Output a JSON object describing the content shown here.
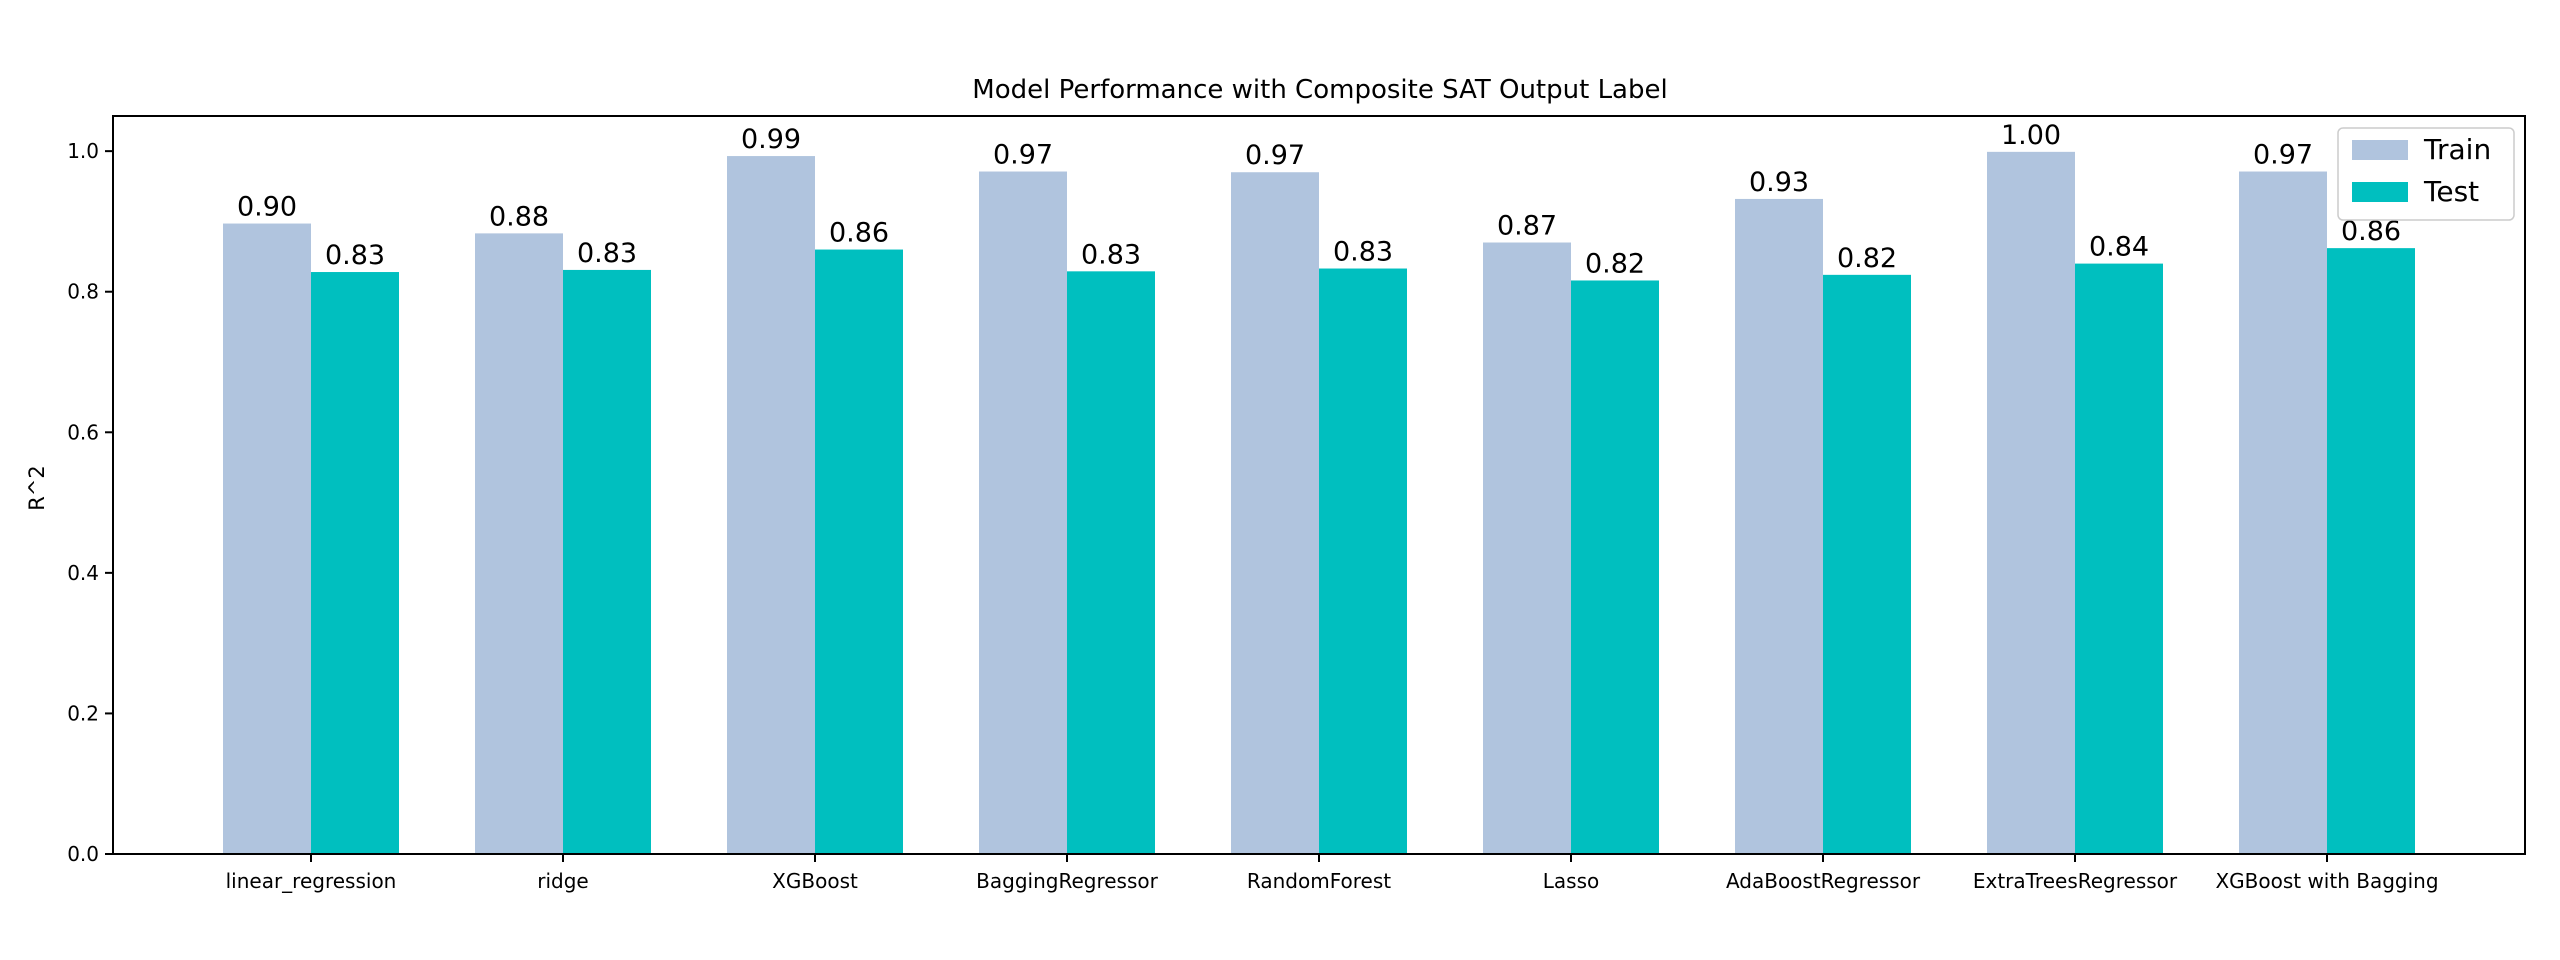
{
  "chart_data": {
    "type": "bar",
    "title": "Model Performance with Composite SAT Output Label",
    "xlabel": "",
    "ylabel": "R^2",
    "ylim": [
      0,
      1.05
    ],
    "yticks": [
      "0.0",
      "0.2",
      "0.4",
      "0.6",
      "0.8",
      "1.0"
    ],
    "categories": [
      "linear_regression",
      "ridge",
      "XGBoost",
      "BaggingRegressor",
      "RandomForest",
      "Lasso",
      "AdaBoostRegressor",
      "ExtraTreesRegressor",
      "XGBoost with Bagging"
    ],
    "series": [
      {
        "name": "Train",
        "color": "#b0c4de",
        "values": [
          0.897,
          0.883,
          0.993,
          0.971,
          0.97,
          0.87,
          0.932,
          0.999,
          0.971
        ],
        "labels": [
          "0.90",
          "0.88",
          "0.99",
          "0.97",
          "0.97",
          "0.87",
          "0.93",
          "1.00",
          "0.97"
        ]
      },
      {
        "name": "Test",
        "color": "#00bfbf",
        "values": [
          0.828,
          0.831,
          0.86,
          0.829,
          0.833,
          0.816,
          0.824,
          0.84,
          0.862
        ],
        "labels": [
          "0.83",
          "0.83",
          "0.86",
          "0.83",
          "0.83",
          "0.82",
          "0.82",
          "0.84",
          "0.86"
        ]
      }
    ],
    "legend": "top-right",
    "grid": false
  }
}
